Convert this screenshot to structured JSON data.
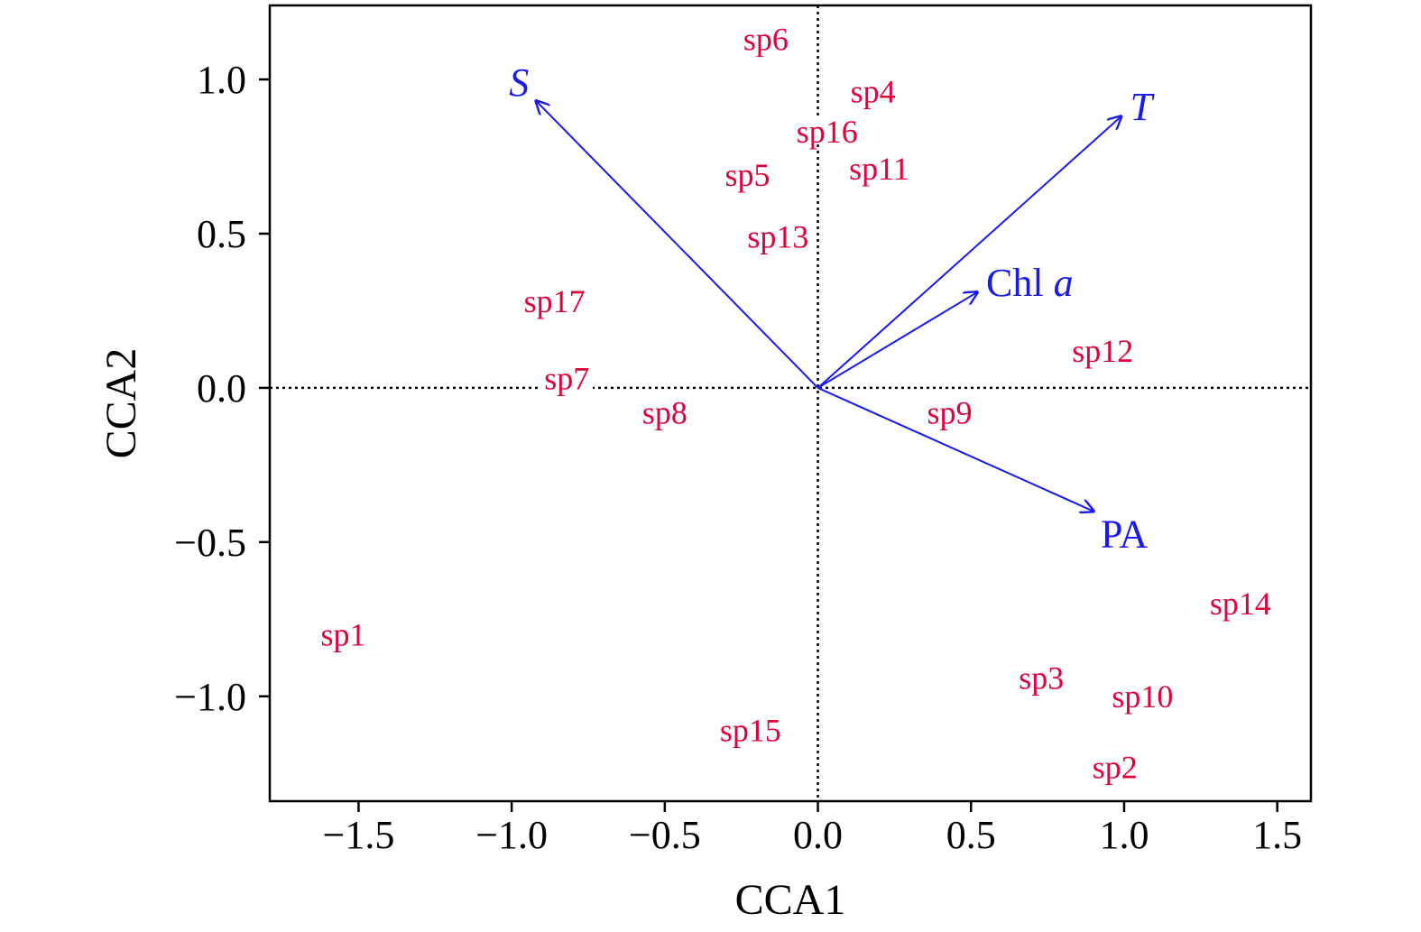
{
  "chart_data": {
    "type": "scatter",
    "title": "",
    "xlabel": "CCA1",
    "ylabel": "CCA2",
    "xlim": [
      -1.79,
      1.61
    ],
    "ylim": [
      -1.34,
      1.24
    ],
    "x_ticks": [
      -1.5,
      -1.0,
      -0.5,
      0.0,
      0.5,
      1.0,
      1.5
    ],
    "x_tick_labels": [
      "−1.5",
      "−1.0",
      "−0.5",
      "0.0",
      "0.5",
      "1.0",
      "1.5"
    ],
    "y_ticks": [
      -1.0,
      -0.5,
      0.0,
      0.5,
      1.0
    ],
    "y_tick_labels": [
      "−1.0",
      "−0.5",
      "0.0",
      "0.5",
      "1.0"
    ],
    "reference_lines": {
      "x": 0,
      "y": 0,
      "style": "dotted"
    },
    "grid": false,
    "legend": "none",
    "species_color": "#e0003a",
    "env_color": "#1a1aee",
    "species": [
      {
        "label": "sp1",
        "x": -1.55,
        "y": -0.8
      },
      {
        "label": "sp2",
        "x": 0.97,
        "y": -1.23
      },
      {
        "label": "sp3",
        "x": 0.73,
        "y": -0.94
      },
      {
        "label": "sp4",
        "x": 0.18,
        "y": 0.96
      },
      {
        "label": "sp5",
        "x": -0.23,
        "y": 0.69
      },
      {
        "label": "sp6",
        "x": -0.17,
        "y": 1.13
      },
      {
        "label": "sp7",
        "x": -0.82,
        "y": 0.03
      },
      {
        "label": "sp8",
        "x": -0.5,
        "y": -0.08
      },
      {
        "label": "sp9",
        "x": 0.43,
        "y": -0.08
      },
      {
        "label": "sp10",
        "x": 1.06,
        "y": -1.0
      },
      {
        "label": "sp11",
        "x": 0.2,
        "y": 0.71
      },
      {
        "label": "sp12",
        "x": 0.93,
        "y": 0.12
      },
      {
        "label": "sp13",
        "x": -0.13,
        "y": 0.49
      },
      {
        "label": "sp14",
        "x": 1.38,
        "y": -0.7
      },
      {
        "label": "sp15",
        "x": -0.22,
        "y": -1.11
      },
      {
        "label": "sp16",
        "x": 0.03,
        "y": 0.83
      },
      {
        "label": "sp17",
        "x": -0.86,
        "y": 0.28
      }
    ],
    "env_vectors": [
      {
        "label": "S",
        "italic": true,
        "x": -0.92,
        "y": 0.93
      },
      {
        "label": "T",
        "italic": true,
        "x": 0.99,
        "y": 0.88
      },
      {
        "label_main": "Chl ",
        "label_italic": "a",
        "x": 0.52,
        "y": 0.31
      },
      {
        "label": "PA",
        "italic": false,
        "x": 0.9,
        "y": -0.4
      }
    ]
  }
}
